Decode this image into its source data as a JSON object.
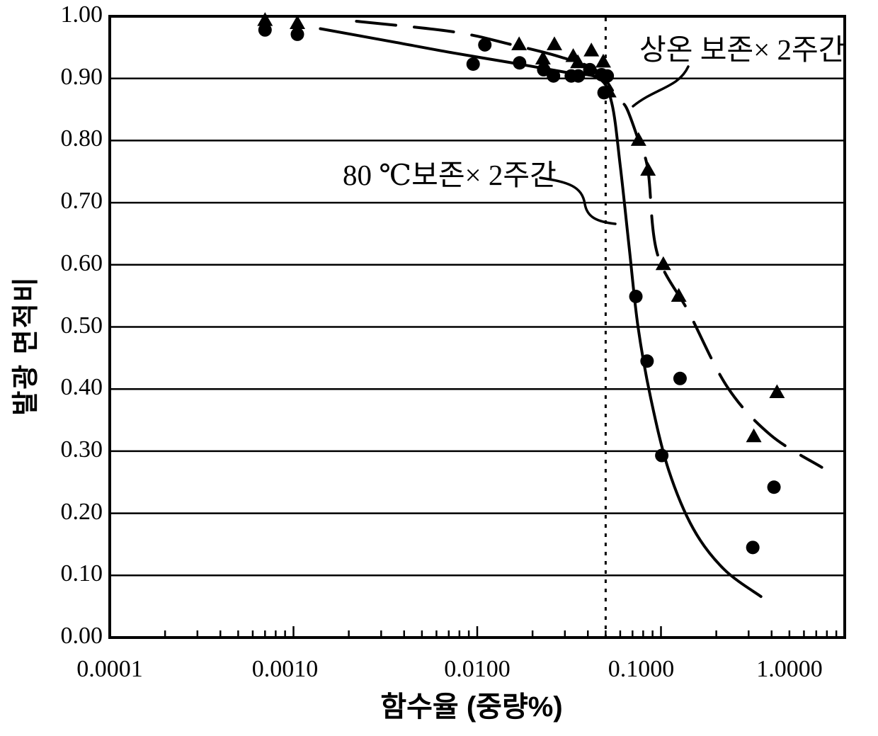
{
  "figure": {
    "background": "#ffffff",
    "ink_color": "#000000"
  },
  "chart_data": {
    "type": "scatter",
    "title": "",
    "x_axis": {
      "label": "함수율 (중량%)",
      "scale": "log",
      "min": 0.0001,
      "max": 1.0,
      "tick_labels": [
        "0.0001",
        "0.0010",
        "0.0100",
        "0.1000",
        "1.0000"
      ]
    },
    "y_axis": {
      "label": "발광 면적비",
      "min": 0.0,
      "max": 1.0,
      "tick_step": 0.1,
      "tick_labels": [
        "1.00",
        "0.90",
        "0.80",
        "0.70",
        "0.60",
        "0.50",
        "0.40",
        "0.30",
        "0.20",
        "0.10",
        "0.00"
      ]
    },
    "grid": "horizontal",
    "legend_position": "none",
    "reference_line": {
      "orientation": "vertical",
      "x": 0.05,
      "style": "dotted"
    },
    "series": [
      {
        "name": "80 ℃보존× 2주간",
        "marker": "circle",
        "curve_style": "solid",
        "points": [
          [
            0.0007,
            0.978
          ],
          [
            0.00105,
            0.971
          ],
          [
            0.0095,
            0.923
          ],
          [
            0.011,
            0.954
          ],
          [
            0.017,
            0.925
          ],
          [
            0.023,
            0.914
          ],
          [
            0.026,
            0.904
          ],
          [
            0.0325,
            0.904
          ],
          [
            0.0355,
            0.904
          ],
          [
            0.041,
            0.914
          ],
          [
            0.0475,
            0.906
          ],
          [
            0.051,
            0.904
          ],
          [
            0.049,
            0.877
          ],
          [
            0.073,
            0.549
          ],
          [
            0.084,
            0.445
          ],
          [
            0.101,
            0.293
          ],
          [
            0.127,
            0.417
          ],
          [
            0.316,
            0.145
          ],
          [
            0.412,
            0.242
          ]
        ],
        "trend_curve": [
          [
            0.0014,
            0.98
          ],
          [
            0.0036,
            0.958
          ],
          [
            0.0074,
            0.941
          ],
          [
            0.0148,
            0.926
          ],
          [
            0.03,
            0.91
          ],
          [
            0.046,
            0.9
          ],
          [
            0.054,
            0.86
          ],
          [
            0.06,
            0.76
          ],
          [
            0.067,
            0.63
          ],
          [
            0.075,
            0.5
          ],
          [
            0.088,
            0.385
          ],
          [
            0.11,
            0.27
          ],
          [
            0.15,
            0.175
          ],
          [
            0.22,
            0.11
          ],
          [
            0.35,
            0.066
          ]
        ]
      },
      {
        "name": "상온 보존× 2주간",
        "marker": "triangle",
        "curve_style": "dashed",
        "points": [
          [
            0.0007,
            0.993
          ],
          [
            0.00105,
            0.988
          ],
          [
            0.0169,
            0.954
          ],
          [
            0.0228,
            0.931
          ],
          [
            0.0263,
            0.954
          ],
          [
            0.0333,
            0.935
          ],
          [
            0.0353,
            0.925
          ],
          [
            0.0418,
            0.944
          ],
          [
            0.0485,
            0.926
          ],
          [
            0.052,
            0.878
          ],
          [
            0.0755,
            0.8
          ],
          [
            0.085,
            0.752
          ],
          [
            0.103,
            0.6
          ],
          [
            0.125,
            0.549
          ],
          [
            0.428,
            0.394
          ],
          [
            0.32,
            0.323
          ]
        ],
        "trend_curve": [
          [
            0.0022,
            0.992
          ],
          [
            0.0074,
            0.975
          ],
          [
            0.0151,
            0.955
          ],
          [
            0.028,
            0.935
          ],
          [
            0.045,
            0.912
          ],
          [
            0.058,
            0.868
          ],
          [
            0.065,
            0.852
          ],
          [
            0.0755,
            0.8
          ],
          [
            0.085,
            0.752
          ],
          [
            0.0955,
            0.618
          ],
          [
            0.142,
            0.523
          ],
          [
            0.23,
            0.403
          ],
          [
            0.395,
            0.326
          ],
          [
            0.75,
            0.274
          ]
        ]
      }
    ],
    "annotations": [
      {
        "text": "상온 보존× 2주간",
        "series": "room-temp-storage"
      },
      {
        "text": "80 ℃보존× 2주간",
        "series": "80c-storage"
      }
    ]
  }
}
